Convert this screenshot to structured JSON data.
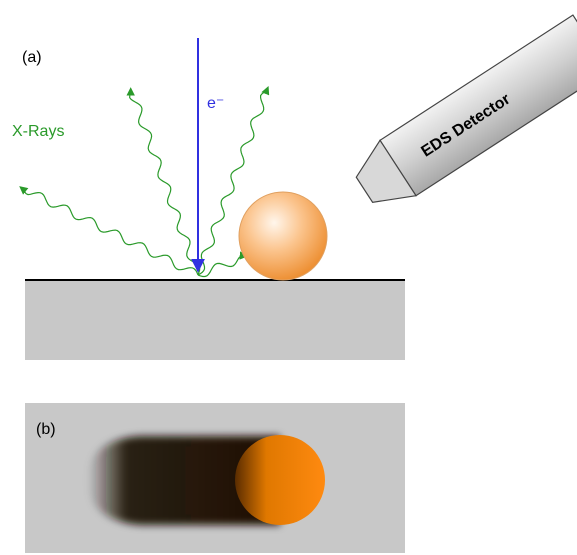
{
  "panel_a": {
    "label": "(a)",
    "beam_label": "e⁻",
    "rays_label": "X-Rays",
    "detector_label": "EDS Detector"
  },
  "panel_b": {
    "label": "(b)"
  }
}
